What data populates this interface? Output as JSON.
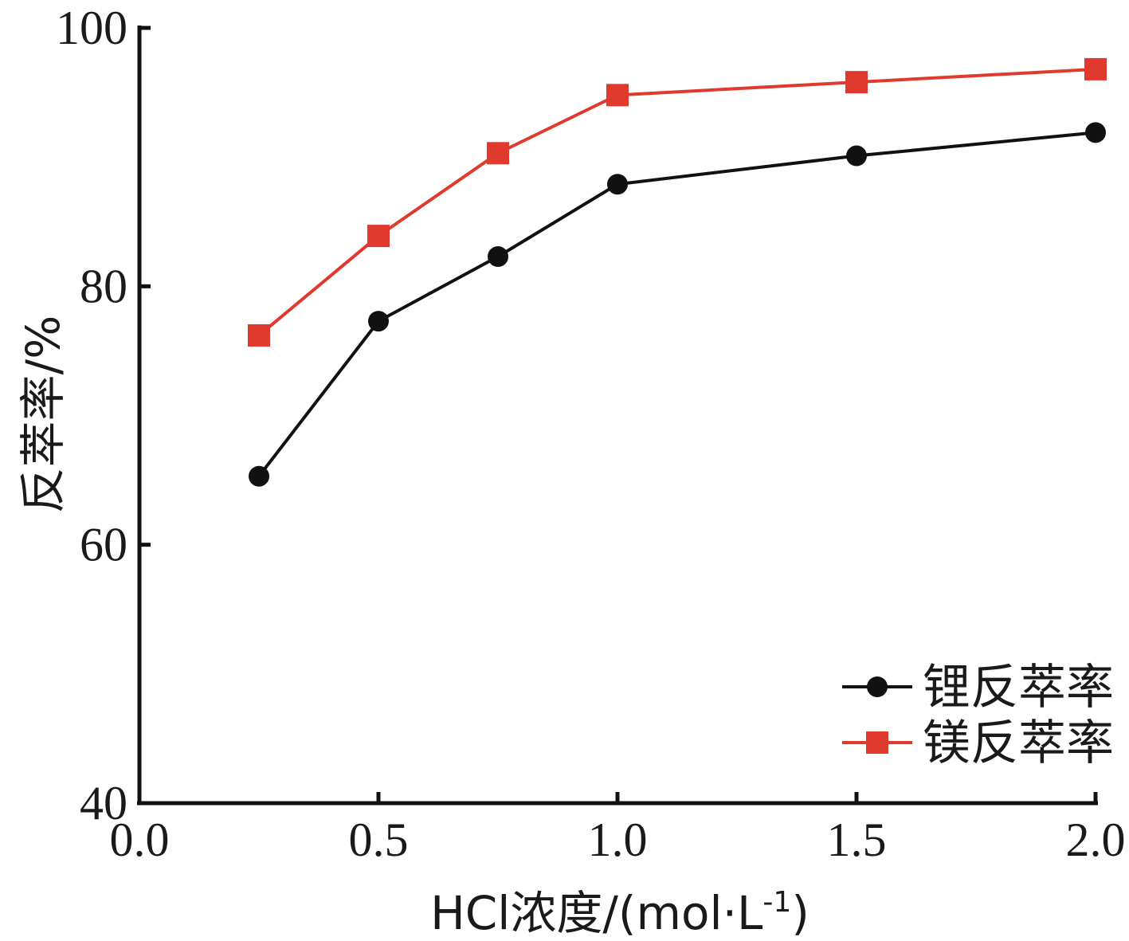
{
  "chart_data": {
    "type": "line",
    "xlabel": "HCl浓度/(mol·L",
    "xlabel_superscript": "-1",
    "xlabel_close": ")",
    "ylabel": "反萃率/%",
    "xlim": [
      0,
      2
    ],
    "ylim": [
      40,
      100
    ],
    "x_ticks": [
      0.0,
      0.5,
      1.0,
      1.5,
      2.0
    ],
    "x_tick_labels": [
      "0.0",
      "0.5",
      "1.0",
      "1.5",
      "2.0"
    ],
    "y_ticks": [
      40,
      60,
      80,
      100
    ],
    "y_tick_labels": [
      "40",
      "60",
      "80",
      "100"
    ],
    "grid": false,
    "legend_position": "bottom-right",
    "series": [
      {
        "name": "锂反萃率",
        "marker": "circle",
        "color": "#111111",
        "x": [
          0.25,
          0.5,
          0.75,
          1.0,
          1.5,
          2.0
        ],
        "y": [
          65.3,
          77.3,
          82.3,
          87.9,
          90.1,
          91.9
        ]
      },
      {
        "name": "镁反萃率",
        "marker": "square",
        "color": "#e03a2f",
        "x": [
          0.25,
          0.5,
          0.75,
          1.0,
          1.5,
          2.0
        ],
        "y": [
          76.2,
          83.9,
          90.3,
          94.8,
          95.8,
          96.8
        ]
      }
    ]
  }
}
